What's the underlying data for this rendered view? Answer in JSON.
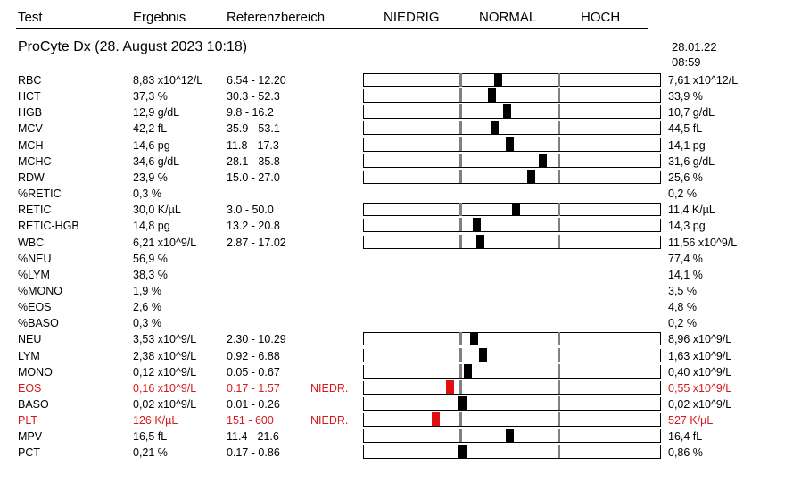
{
  "header": {
    "test": "Test",
    "result": "Ergebnis",
    "reference": "Referenzbereich",
    "low": "NIEDRIG",
    "normal": "NORMAL",
    "high": "HOCH"
  },
  "title": "ProCyte Dx (28. August 2023 10:18)",
  "previous": {
    "date": "28.01.22",
    "time": "08:59"
  },
  "rows": [
    {
      "test": "RBC",
      "result": "8,83 x10^12/L",
      "ref": "6.54 - 12.20",
      "flag": "",
      "prev": "7,61 x10^12/L",
      "pos": 0.45
    },
    {
      "test": "HCT",
      "result": "37,3 %",
      "ref": "30.3 - 52.3",
      "flag": "",
      "prev": "33,9 %",
      "pos": 0.43
    },
    {
      "test": "HGB",
      "result": "12,9 g/dL",
      "ref": "9.8 - 16.2",
      "flag": "",
      "prev": "10,7 g/dL",
      "pos": 0.48
    },
    {
      "test": "MCV",
      "result": "42,2 fL",
      "ref": "35.9 - 53.1",
      "flag": "",
      "prev": "44,5 fL",
      "pos": 0.44
    },
    {
      "test": "MCH",
      "result": "14,6 pg",
      "ref": "11.8 - 17.3",
      "flag": "",
      "prev": "14,1 pg",
      "pos": 0.49
    },
    {
      "test": "MCHC",
      "result": "34,6 g/dL",
      "ref": "28.1 - 35.8",
      "flag": "",
      "prev": "31,6 g/dL",
      "pos": 0.6
    },
    {
      "test": "RDW",
      "result": "23,9 %",
      "ref": "15.0 - 27.0",
      "flag": "",
      "prev": "25,6 %",
      "pos": 0.56
    },
    {
      "test": "%RETIC",
      "result": "0,3 %",
      "ref": "",
      "flag": "",
      "prev": "0,2 %",
      "pos": null
    },
    {
      "test": "RETIC",
      "result": "30,0 K/µL",
      "ref": "3.0 - 50.0",
      "flag": "",
      "prev": "11,4 K/µL",
      "pos": 0.51
    },
    {
      "test": "RETIC-HGB",
      "result": "14,8 pg",
      "ref": "13.2 - 20.8",
      "flag": "",
      "prev": "14,3 pg",
      "pos": 0.38
    },
    {
      "test": "WBC",
      "result": "6,21 x10^9/L",
      "ref": "2.87 - 17.02",
      "flag": "",
      "prev": "11,56 x10^9/L",
      "pos": 0.39
    },
    {
      "test": "%NEU",
      "result": "56,9 %",
      "ref": "",
      "flag": "",
      "prev": "77,4 %",
      "pos": null
    },
    {
      "test": "%LYM",
      "result": "38,3 %",
      "ref": "",
      "flag": "",
      "prev": "14,1 %",
      "pos": null
    },
    {
      "test": "%MONO",
      "result": "1,9 %",
      "ref": "",
      "flag": "",
      "prev": "3,5 %",
      "pos": null
    },
    {
      "test": "%EOS",
      "result": "2,6 %",
      "ref": "",
      "flag": "",
      "prev": "4,8 %",
      "pos": null
    },
    {
      "test": "%BASO",
      "result": "0,3 %",
      "ref": "",
      "flag": "",
      "prev": "0,2 %",
      "pos": null
    },
    {
      "test": "NEU",
      "result": "3,53 x10^9/L",
      "ref": "2.30 - 10.29",
      "flag": "",
      "prev": "8,96 x10^9/L",
      "pos": 0.37
    },
    {
      "test": "LYM",
      "result": "2,38 x10^9/L",
      "ref": "0.92 - 6.88",
      "flag": "",
      "prev": "1,63 x10^9/L",
      "pos": 0.4
    },
    {
      "test": "MONO",
      "result": "0,12 x10^9/L",
      "ref": "0.05 - 0.67",
      "flag": "",
      "prev": "0,40 x10^9/L",
      "pos": 0.35
    },
    {
      "test": "EOS",
      "result": "0,16 x10^9/L",
      "ref": "0.17 - 1.57",
      "flag": "NIEDR.",
      "prev": "0,55 x10^9/L",
      "pos": 0.29
    },
    {
      "test": "BASO",
      "result": "0,02 x10^9/L",
      "ref": "0.01 - 0.26",
      "flag": "",
      "prev": "0,02 x10^9/L",
      "pos": 0.33
    },
    {
      "test": "PLT",
      "result": "126 K/µL",
      "ref": "151 - 600",
      "flag": "NIEDR.",
      "prev": "527 K/µL",
      "pos": 0.24
    },
    {
      "test": "MPV",
      "result": "16,5 fL",
      "ref": "11.4 - 21.6",
      "flag": "",
      "prev": "16,4 fL",
      "pos": 0.49
    },
    {
      "test": "PCT",
      "result": "0,21 %",
      "ref": "0.17 - 0.86",
      "flag": "",
      "prev": "0,86 %",
      "pos": 0.33
    }
  ],
  "colors": {
    "flag": "#d61a1a",
    "marker": "#000000",
    "marker_low": "#e01010",
    "zone_line": "#808080"
  }
}
